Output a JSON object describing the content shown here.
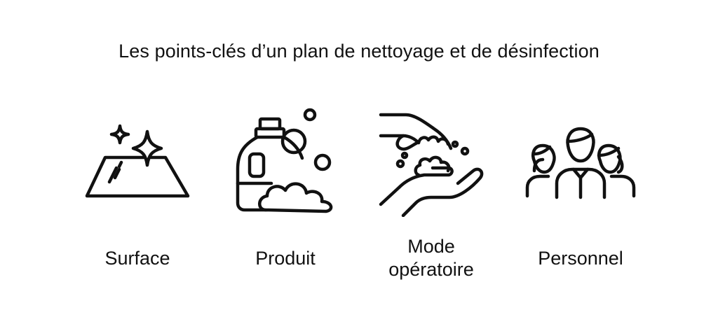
{
  "title": "Les points-clés d’un plan de nettoyage et de désinfection",
  "items": [
    {
      "label": "Surface",
      "icon": "sparkling-surface-icon"
    },
    {
      "label": "Produit",
      "icon": "detergent-bottle-icon"
    },
    {
      "label_line1": "Mode",
      "label_line2": "opératoire",
      "icon": "washing-hands-icon"
    },
    {
      "label": "Personnel",
      "icon": "staff-group-icon"
    }
  ],
  "colors": {
    "stroke": "#111111",
    "background": "#ffffff"
  }
}
